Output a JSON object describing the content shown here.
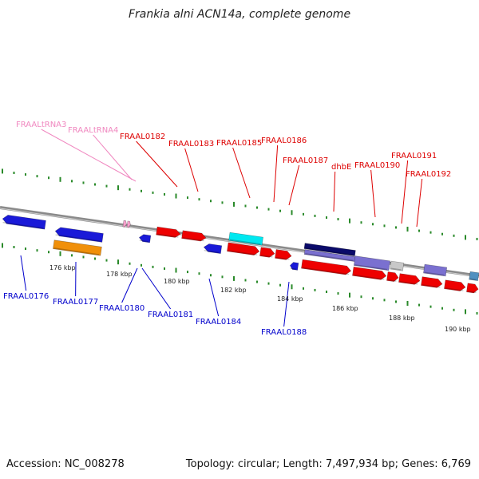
{
  "title": "Frankia alni ACN14a, complete genome",
  "footer": {
    "accession": "Accession: NC_008278",
    "stats": "Topology: circular; Length: 7,497,934 bp; Genes: 6,769"
  },
  "colors": {
    "forward_label": "#dd0000",
    "reverse_label": "#0000cc",
    "rna_label": "#f088c0",
    "tick": "#2a8a2a"
  },
  "scale_labels": [
    "176 kbp",
    "178 kbp",
    "180 kbp",
    "182 kbp",
    "184 kbp",
    "186 kbp",
    "188 kbp",
    "190 kbp"
  ],
  "labels_top": [
    {
      "text": "FRAALtRNA3",
      "kind": "rna"
    },
    {
      "text": "FRAALtRNA4",
      "kind": "rna"
    },
    {
      "text": "FRAAL0182",
      "kind": "fwd"
    },
    {
      "text": "FRAAL0183",
      "kind": "fwd"
    },
    {
      "text": "FRAAL0185",
      "kind": "fwd"
    },
    {
      "text": "FRAAL0186",
      "kind": "fwd"
    },
    {
      "text": "FRAAL0187",
      "kind": "fwd"
    },
    {
      "text": "dhbE",
      "kind": "fwd"
    },
    {
      "text": "FRAAL0190",
      "kind": "fwd"
    },
    {
      "text": "FRAAL0191",
      "kind": "fwd"
    },
    {
      "text": "FRAAL0192",
      "kind": "fwd"
    }
  ],
  "labels_bottom": [
    {
      "text": "FRAAL0176"
    },
    {
      "text": "FRAAL0177"
    },
    {
      "text": "FRAAL0180"
    },
    {
      "text": "FRAAL0181"
    },
    {
      "text": "FRAAL0184"
    },
    {
      "text": "FRAAL0188"
    }
  ]
}
